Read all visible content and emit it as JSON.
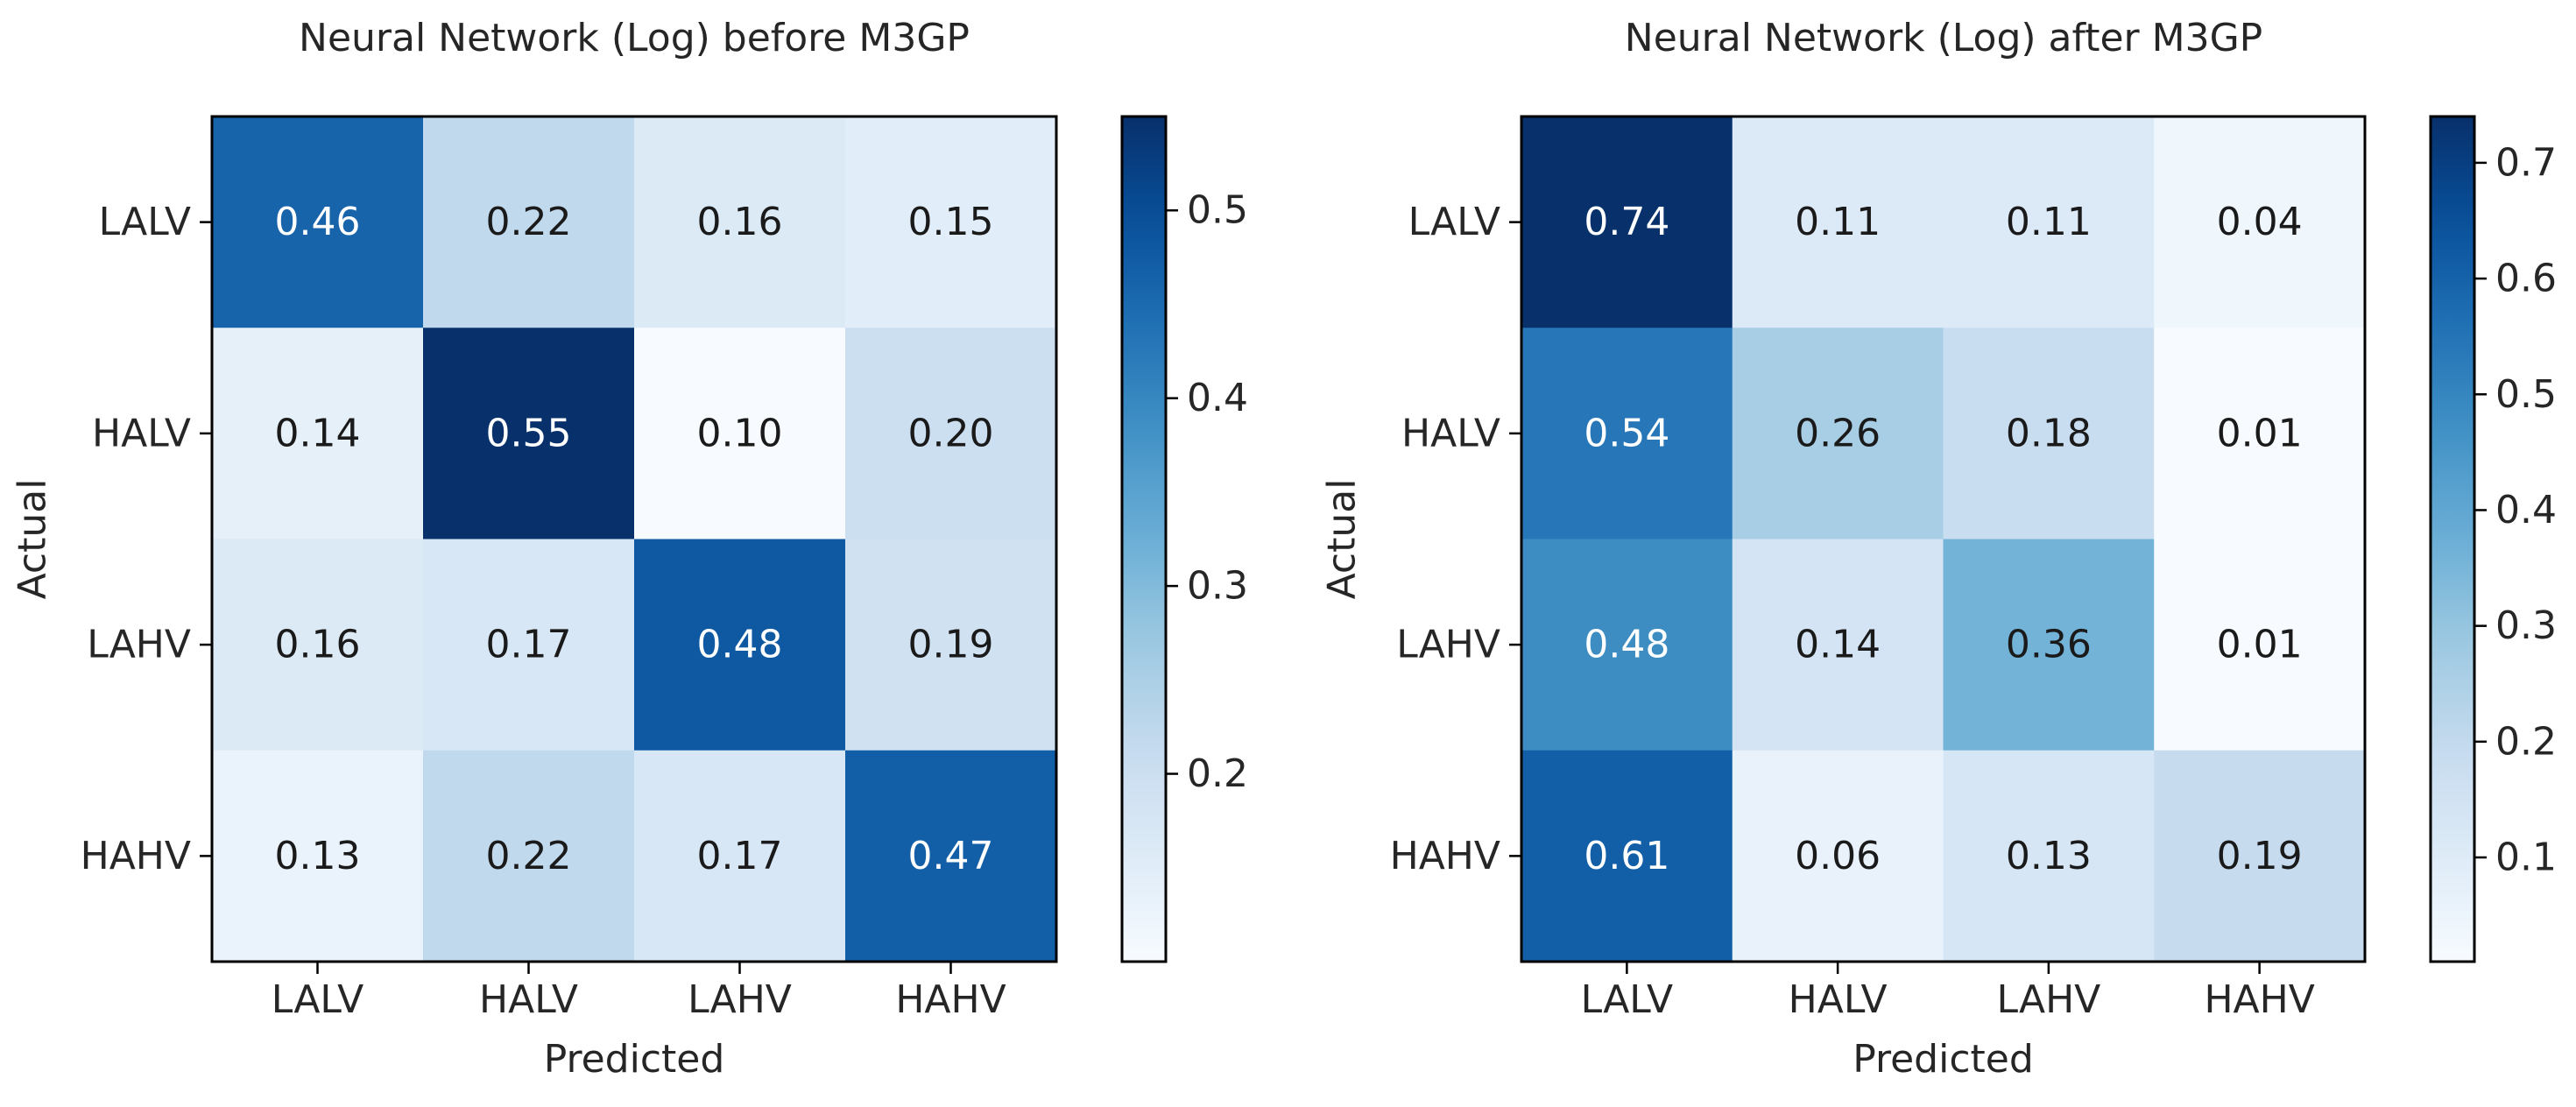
{
  "chart_data": [
    {
      "type": "heatmap",
      "title": "Neural Network (Log) before M3GP",
      "xlabel": "Predicted",
      "ylabel": "Actual",
      "x_categories": [
        "LALV",
        "HALV",
        "LAHV",
        "HAHV"
      ],
      "y_categories": [
        "LALV",
        "HALV",
        "LAHV",
        "HAHV"
      ],
      "matrix": [
        [
          0.46,
          0.22,
          0.16,
          0.15
        ],
        [
          0.14,
          0.55,
          0.1,
          0.2
        ],
        [
          0.16,
          0.17,
          0.48,
          0.19
        ],
        [
          0.13,
          0.22,
          0.17,
          0.47
        ]
      ],
      "cell_labels": [
        [
          "0.46",
          "0.22",
          "0.16",
          "0.15"
        ],
        [
          "0.14",
          "0.55",
          "0.10",
          "0.20"
        ],
        [
          "0.16",
          "0.17",
          "0.48",
          "0.19"
        ],
        [
          "0.13",
          "0.22",
          "0.17",
          "0.47"
        ]
      ],
      "colormap": "Blues",
      "vmin": 0.1,
      "vmax": 0.55,
      "colorbar_ticks": [
        0.2,
        0.3,
        0.4,
        0.5
      ],
      "colorbar_tick_labels": [
        "0.2",
        "0.3",
        "0.4",
        "0.5"
      ]
    },
    {
      "type": "heatmap",
      "title": "Neural Network (Log) after M3GP",
      "xlabel": "Predicted",
      "ylabel": "Actual",
      "x_categories": [
        "LALV",
        "HALV",
        "LAHV",
        "HAHV"
      ],
      "y_categories": [
        "LALV",
        "HALV",
        "LAHV",
        "HAHV"
      ],
      "matrix": [
        [
          0.74,
          0.11,
          0.11,
          0.04
        ],
        [
          0.54,
          0.26,
          0.18,
          0.01
        ],
        [
          0.48,
          0.14,
          0.36,
          0.01
        ],
        [
          0.61,
          0.06,
          0.13,
          0.19
        ]
      ],
      "cell_labels": [
        [
          "0.74",
          "0.11",
          "0.11",
          "0.04"
        ],
        [
          "0.54",
          "0.26",
          "0.18",
          "0.01"
        ],
        [
          "0.48",
          "0.14",
          "0.36",
          "0.01"
        ],
        [
          "0.61",
          "0.06",
          "0.13",
          "0.19"
        ]
      ],
      "colormap": "Blues",
      "vmin": 0.01,
      "vmax": 0.74,
      "colorbar_ticks": [
        0.1,
        0.2,
        0.3,
        0.4,
        0.5,
        0.6,
        0.7
      ],
      "colorbar_tick_labels": [
        "0.1",
        "0.2",
        "0.3",
        "0.4",
        "0.5",
        "0.6",
        "0.7"
      ]
    }
  ]
}
